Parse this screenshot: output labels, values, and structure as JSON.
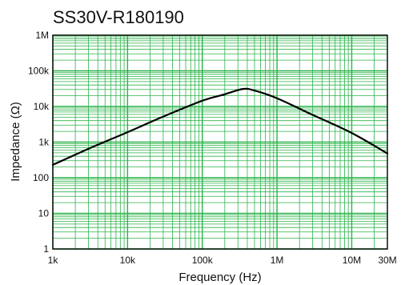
{
  "chart_data": {
    "type": "line",
    "title": "SS30V-R180190",
    "xlabel": "Frequency (Hz)",
    "ylabel": "Impedance (Ω)",
    "x_scale": "log",
    "y_scale": "log",
    "xlim": [
      1000,
      30000000
    ],
    "ylim": [
      1,
      1000000
    ],
    "grid": true,
    "x_ticks": [
      {
        "value": 1000,
        "label": "1k"
      },
      {
        "value": 10000,
        "label": "10k"
      },
      {
        "value": 100000,
        "label": "100k"
      },
      {
        "value": 1000000,
        "label": "1M"
      },
      {
        "value": 10000000,
        "label": "10M"
      },
      {
        "value": 30000000,
        "label": "30M"
      }
    ],
    "y_ticks": [
      {
        "value": 1,
        "label": "1"
      },
      {
        "value": 10,
        "label": "10"
      },
      {
        "value": 100,
        "label": "100"
      },
      {
        "value": 1000,
        "label": "1k"
      },
      {
        "value": 10000,
        "label": "10k"
      },
      {
        "value": 100000,
        "label": "100k"
      },
      {
        "value": 1000000,
        "label": "1M"
      }
    ],
    "series": [
      {
        "x": [
          1000,
          3000,
          10000,
          30000,
          100000,
          200000,
          350000,
          500000,
          1000000,
          3000000,
          10000000,
          30000000
        ],
        "y": [
          230,
          650,
          1900,
          5200,
          14500,
          22000,
          31000,
          28000,
          17000,
          5800,
          1800,
          480
        ]
      }
    ]
  },
  "colors": {
    "grid": "#2cb34a",
    "frame": "#000000",
    "line": "#000000",
    "background": "#ffffff"
  }
}
